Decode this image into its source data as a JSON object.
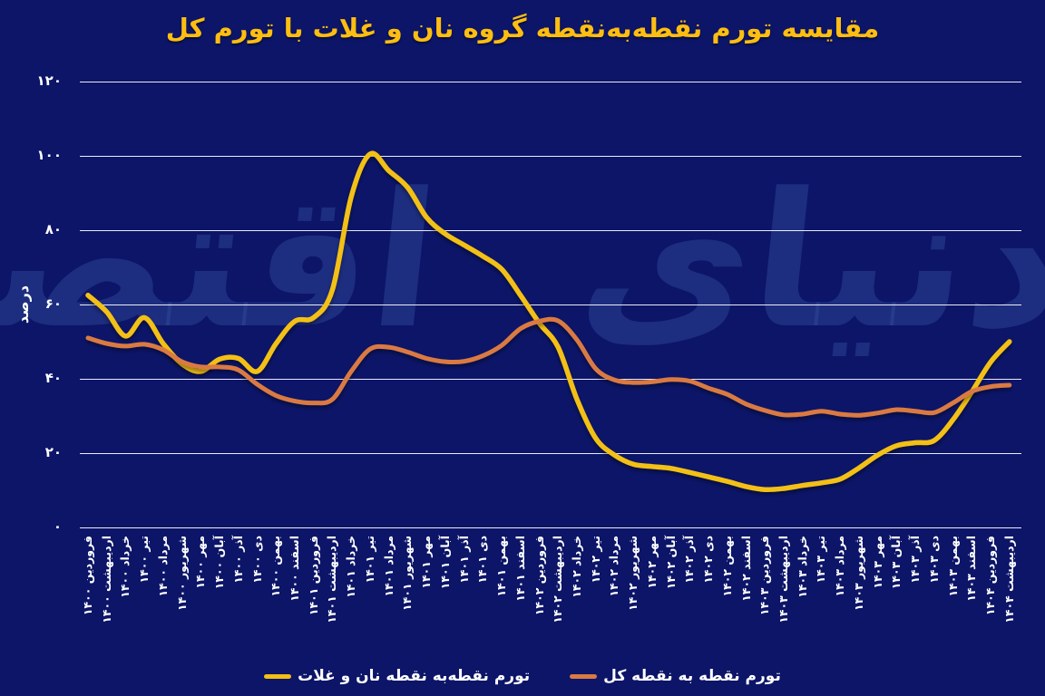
{
  "title": "مقایسه تورم نقطه‌به‌نقطه گروه نان و غلات با تورم کل",
  "watermark": "دنیای اقتصاد",
  "colors": {
    "background": "#0c1568",
    "title": "#fdbe11",
    "bread_line": "#f3c013",
    "total_line": "#da7a43",
    "grid": "#ffffff",
    "axis_text": "#ffffff"
  },
  "y_axis": {
    "label": "درصد",
    "ticks": [
      "۰",
      "۲۰",
      "۴۰",
      "۶۰",
      "۸۰",
      "۱۰۰",
      "۱۲۰"
    ],
    "values": [
      0,
      20,
      40,
      60,
      80,
      100,
      120
    ]
  },
  "legend": [
    {
      "label": "تورم نقطه‌به نقطه نان و غلات",
      "color": "#f3c013"
    },
    {
      "label": "تورم نقطه به نقطه کل",
      "color": "#da7a43"
    }
  ],
  "chart_data": {
    "type": "line",
    "title": "مقایسه تورم نقطه‌به‌نقطه گروه نان و غلات با تورم کل",
    "ylabel": "درصد",
    "ylim": [
      0,
      120
    ],
    "grid": "horizontal",
    "legend_position": "bottom",
    "x_labels": [
      "فروردین ۱۴۰۰",
      "اردیبهشت ۱۴۰۰",
      "خرداد ۱۴۰۰",
      "تیر ۱۴۰۰",
      "مرداد ۱۴۰۰",
      "شهریور ۱۴۰۰",
      "مهر ۱۴۰۰",
      "آبان ۱۴۰۰",
      "آذر ۱۴۰۰",
      "دی ۱۴۰۰",
      "بهمن ۱۴۰۰",
      "اسفند ۱۴۰۰",
      "فروردین ۱۴۰۱",
      "اردیبهشت ۱۴۰۱",
      "خرداد ۱۴۰۱",
      "تیر ۱۴۰۱",
      "مرداد ۱۴۰۱",
      "شهریور ۱۴۰۱",
      "مهر ۱۴۰۱",
      "آبان ۱۴۰۱",
      "آذر ۱۴۰۱",
      "دی ۱۴۰۱",
      "بهمن ۱۴۰۱",
      "اسفند ۱۴۰۱",
      "فروردین ۱۴۰۲",
      "اردیبهشت ۱۴۰۲",
      "خرداد ۱۴۰۲",
      "تیر ۱۴۰۲",
      "مرداد ۱۴۰۲",
      "شهریور ۱۴۰۲",
      "مهر ۱۴۰۲",
      "آبان ۱۴۰۲",
      "آذر ۱۴۰۲",
      "دی ۱۴۰۲",
      "بهمن ۱۴۰۲",
      "اسفند ۱۴۰۲",
      "فروردین ۱۴۰۳",
      "اردیبهشت ۱۴۰۳",
      "خرداد ۱۴۰۳",
      "تیر ۱۴۰۳",
      "مرداد ۱۴۰۳",
      "شهریور ۱۴۰۳",
      "مهر ۱۴۰۳",
      "آبان ۱۴۰۳",
      "آذر ۱۴۰۳",
      "دی ۱۴۰۳",
      "بهمن ۱۴۰۳",
      "اسفند ۱۴۰۳",
      "فروردین ۱۴۰۴",
      "اردیبهشت ۱۴۰۴"
    ],
    "series": [
      {
        "name": "تورم نقطه‌به نقطه نان و غلات",
        "color": "#f3c013",
        "values": [
          62.5,
          58,
          51.5,
          56.5,
          49.5,
          44,
          42,
          45.3,
          45.5,
          42,
          49.5,
          55.5,
          56.5,
          64,
          89,
          100.5,
          96,
          91.5,
          83.5,
          79,
          76,
          73,
          69.5,
          62.5,
          55,
          48.5,
          34.5,
          24,
          19.5,
          17,
          16.4,
          15.9,
          14.8,
          13.6,
          12.4,
          11,
          10.2,
          10.5,
          11.3,
          12,
          13,
          16,
          19.5,
          22,
          22.8,
          23.4,
          29,
          36.5,
          44.5,
          50
        ]
      },
      {
        "name": "تورم نقطه به نقطه کل",
        "color": "#da7a43",
        "values": [
          51,
          49.5,
          48.8,
          49.3,
          47.8,
          44.6,
          43.2,
          43.2,
          42.4,
          38.5,
          35.5,
          34,
          33.5,
          34.5,
          42,
          48,
          48.5,
          47.2,
          45.5,
          44.6,
          44.7,
          46.2,
          49,
          53.5,
          55.5,
          55.6,
          50.5,
          42.7,
          39.7,
          39,
          39.2,
          39.8,
          39.4,
          37.5,
          35.8,
          33.2,
          31.5,
          30.3,
          30.5,
          31.3,
          30.5,
          30.2,
          30.8,
          31.7,
          31.3,
          30.9,
          33.5,
          36.6,
          37.9,
          38.3
        ]
      }
    ]
  }
}
